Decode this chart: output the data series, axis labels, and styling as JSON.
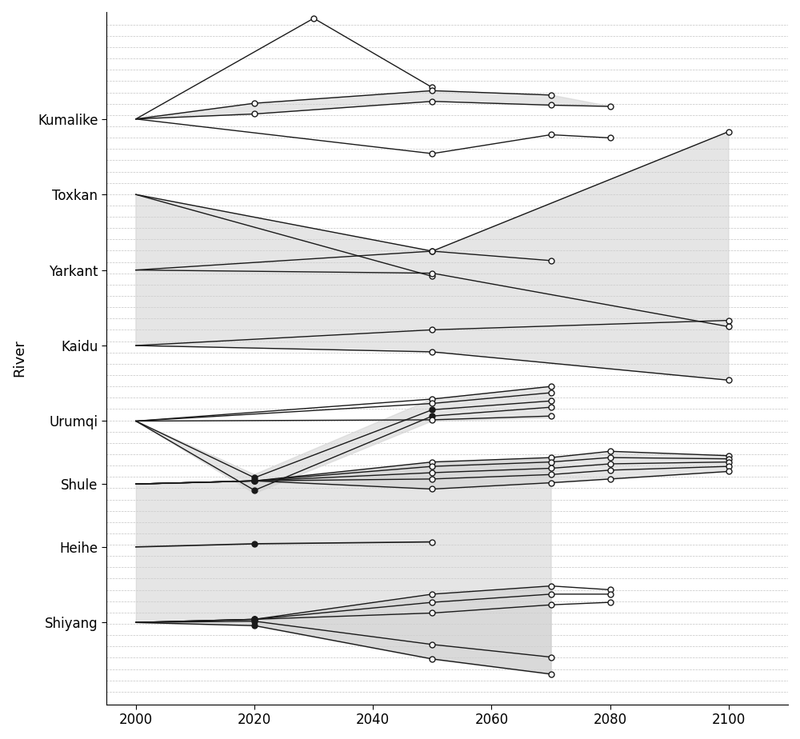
{
  "rivers": [
    "Kumalike",
    "Toxkan",
    "Yarkant",
    "Kaidu",
    "Urumqi",
    "Shule",
    "Heihe",
    "Shiyang"
  ],
  "river_y_positions": [
    8.5,
    7.3,
    6.1,
    4.9,
    3.7,
    2.7,
    1.7,
    0.5
  ],
  "xlabel": "",
  "ylabel": "River",
  "xlim": [
    1995,
    2110
  ],
  "ylim": [
    -0.8,
    10.2
  ],
  "xticks": [
    2000,
    2020,
    2040,
    2060,
    2080,
    2100
  ],
  "background_color": "#ffffff",
  "line_color": "#1a1a1a",
  "fill_color": "#d0d0d0",
  "fill_alpha": 0.55,
  "grid_color": "#aaaaaa",
  "grid_alpha": 0.7,
  "grid_lw": 0.5
}
